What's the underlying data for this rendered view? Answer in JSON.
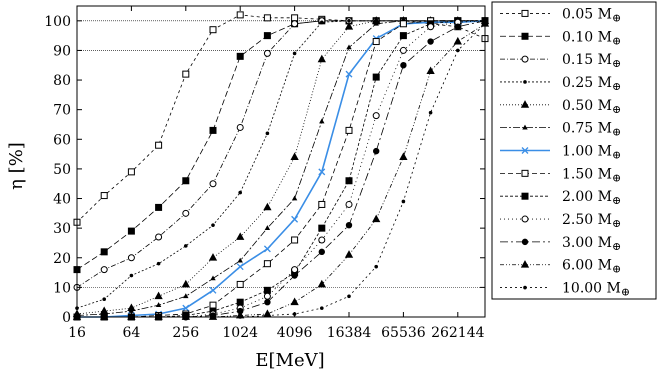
{
  "chart_data": {
    "type": "line",
    "xlabel": "E[MeV]",
    "ylabel": "η [%]",
    "x_scale": "log2",
    "x_ticks": [
      16,
      64,
      256,
      1024,
      4096,
      16384,
      65536,
      262144
    ],
    "x_tick_labels": [
      "16",
      "64",
      "256",
      "1024",
      "4096",
      "16384",
      "65536",
      "262144"
    ],
    "xlim": [
      16,
      524288
    ],
    "ylim": [
      0,
      105
    ],
    "y_ticks": [
      0,
      10,
      20,
      30,
      40,
      50,
      60,
      70,
      80,
      90,
      100
    ],
    "reference_lines": [
      10,
      90,
      100
    ],
    "grid": false,
    "legend_position": "right",
    "x": [
      16,
      32,
      64,
      128,
      256,
      512,
      1024,
      2048,
      4096,
      8192,
      16384,
      32768,
      65536,
      131072,
      262144,
      524288
    ],
    "series": [
      {
        "name": "0.05 M",
        "marker": "open-square",
        "dash": "3,3",
        "color": "#000000",
        "values": [
          32,
          41,
          49,
          58,
          82,
          97,
          102,
          101,
          101,
          100.5,
          100,
          100,
          100,
          99,
          98,
          94
        ]
      },
      {
        "name": "0.10 M",
        "marker": "filled-square",
        "dash": "6,3",
        "color": "#000000",
        "values": [
          16,
          22,
          29,
          37,
          46,
          63,
          88,
          95,
          99,
          100,
          100,
          100,
          100,
          100,
          100,
          100
        ]
      },
      {
        "name": "0.15 M",
        "marker": "open-circle",
        "dash": "5,2,1,2",
        "color": "#000000",
        "values": [
          10,
          16,
          20,
          27,
          35,
          45,
          64,
          89,
          99,
          100,
          100,
          100,
          100,
          100,
          100,
          100
        ]
      },
      {
        "name": "0.25 M",
        "marker": "small-dot",
        "dash": "2,2",
        "color": "#000000",
        "values": [
          3,
          6,
          14,
          18,
          24,
          31,
          42,
          62,
          89,
          99.5,
          100,
          100,
          100,
          100,
          100,
          100
        ]
      },
      {
        "name": "0.50 M",
        "marker": "filled-triangle",
        "dash": "1,2",
        "color": "#000000",
        "values": [
          1,
          2,
          3,
          7,
          11,
          20,
          27,
          37,
          54,
          87,
          98,
          100,
          100,
          100,
          100,
          100
        ]
      },
      {
        "name": "0.75 M",
        "marker": "small-triangle",
        "dash": "7,2,2,2",
        "color": "#000000",
        "values": [
          0.5,
          1,
          2,
          4,
          7,
          13,
          19,
          30,
          40,
          66,
          91,
          99,
          100,
          100,
          100,
          100
        ]
      },
      {
        "name": "1.00 M",
        "marker": "x",
        "dash": "",
        "color": "#3a8ee6",
        "values": [
          0,
          0,
          0.5,
          1,
          3,
          9,
          17,
          23,
          33,
          49,
          82,
          94,
          99,
          99.5,
          99.5,
          100
        ]
      },
      {
        "name": "1.50 M",
        "marker": "open-square",
        "dash": "5,3",
        "color": "#000000",
        "values": [
          0,
          0,
          0,
          0.5,
          1,
          4,
          11,
          18,
          26,
          38,
          63,
          93,
          99,
          100,
          100,
          100
        ]
      },
      {
        "name": "2.00 M",
        "marker": "filled-square",
        "dash": "3,2",
        "color": "#000000",
        "values": [
          0,
          0,
          0,
          0,
          0.5,
          2,
          5,
          9,
          15,
          30,
          46,
          81,
          95,
          99,
          100,
          100
        ]
      },
      {
        "name": "2.50 M",
        "marker": "open-circle",
        "dash": "1,3",
        "color": "#000000",
        "values": [
          0,
          0,
          0,
          0,
          0,
          1,
          3,
          7,
          16,
          26,
          38,
          68,
          90,
          98,
          99.5,
          100
        ]
      },
      {
        "name": "3.00 M",
        "marker": "filled-circle",
        "dash": "8,3,2,3",
        "color": "#000000",
        "values": [
          0,
          0,
          0,
          0,
          0,
          0.5,
          2,
          5,
          14,
          22,
          31,
          56,
          85,
          93,
          98,
          100
        ]
      },
      {
        "name": "6.00 M",
        "marker": "filled-triangle",
        "dash": "4,2,1,2,1,2",
        "color": "#000000",
        "values": [
          0,
          0,
          0,
          0,
          0,
          0,
          0.5,
          1,
          5,
          11,
          21,
          33,
          54,
          83,
          93,
          99
        ]
      },
      {
        "name": "10.00 M",
        "marker": "small-dot",
        "dash": "2,3",
        "color": "#000000",
        "values": [
          0,
          0,
          0,
          0,
          0,
          0,
          0,
          0.5,
          1,
          3,
          7,
          17,
          39,
          69,
          90,
          99
        ]
      }
    ]
  }
}
